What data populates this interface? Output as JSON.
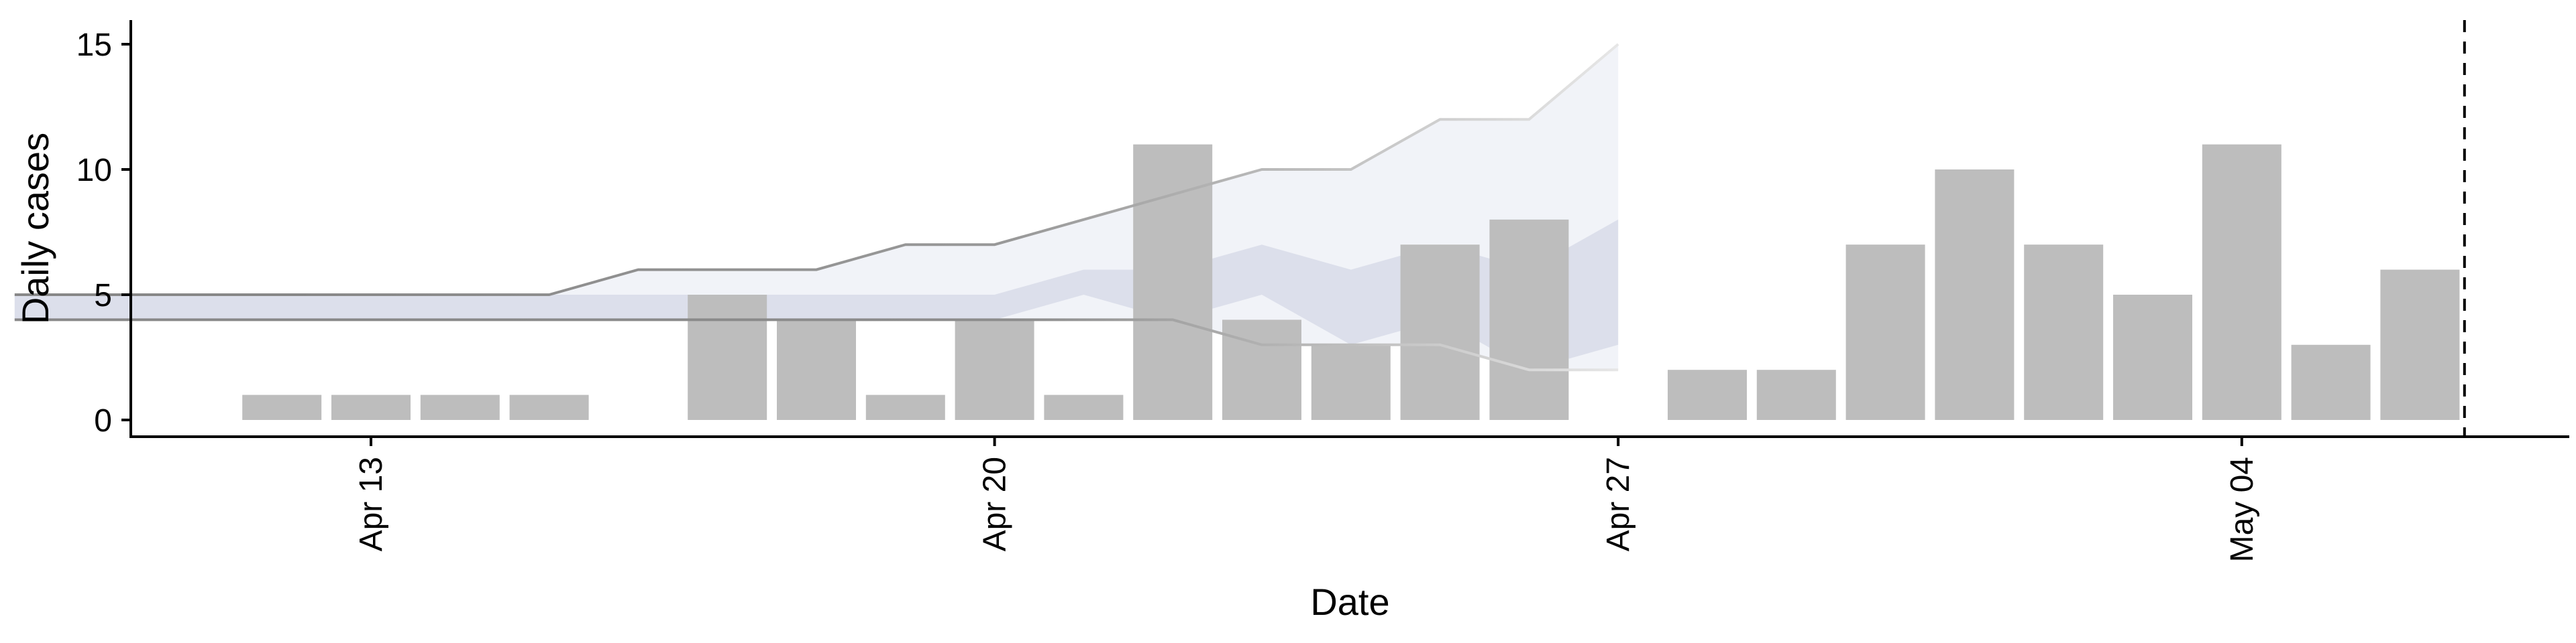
{
  "chart_data": {
    "type": "bar",
    "xlabel": "Date",
    "ylabel": "Daily cases",
    "xlim": [
      "2020-04-07",
      "2020-05-11"
    ],
    "ylim": [
      0,
      16
    ],
    "yticks": [
      0,
      5,
      10,
      15
    ],
    "xticks": [
      {
        "date": "2020-04-13",
        "label": "Apr 13"
      },
      {
        "date": "2020-04-20",
        "label": "Apr 20"
      },
      {
        "date": "2020-04-27",
        "label": "Apr 27"
      },
      {
        "date": "2020-05-04",
        "label": "May 04"
      }
    ],
    "bars": [
      {
        "date": "2020-04-12",
        "value": 1
      },
      {
        "date": "2020-04-13",
        "value": 1
      },
      {
        "date": "2020-04-14",
        "value": 1
      },
      {
        "date": "2020-04-15",
        "value": 1
      },
      {
        "date": "2020-04-17",
        "value": 5
      },
      {
        "date": "2020-04-18",
        "value": 4
      },
      {
        "date": "2020-04-19",
        "value": 1
      },
      {
        "date": "2020-04-20",
        "value": 4
      },
      {
        "date": "2020-04-21",
        "value": 1
      },
      {
        "date": "2020-04-22",
        "value": 11
      },
      {
        "date": "2020-04-23",
        "value": 4
      },
      {
        "date": "2020-04-24",
        "value": 3
      },
      {
        "date": "2020-04-25",
        "value": 7
      },
      {
        "date": "2020-04-26",
        "value": 8
      },
      {
        "date": "2020-04-28",
        "value": 2
      },
      {
        "date": "2020-04-29",
        "value": 2
      },
      {
        "date": "2020-04-30",
        "value": 7
      },
      {
        "date": "2020-05-01",
        "value": 10
      },
      {
        "date": "2020-05-02",
        "value": 7
      },
      {
        "date": "2020-05-03",
        "value": 5
      },
      {
        "date": "2020-05-04",
        "value": 11
      },
      {
        "date": "2020-05-05",
        "value": 3
      },
      {
        "date": "2020-05-06",
        "value": 6
      }
    ],
    "outer_ribbon": [
      {
        "date": "2020-04-09",
        "lower": 4,
        "upper": 5
      },
      {
        "date": "2020-04-12",
        "lower": 4,
        "upper": 5
      },
      {
        "date": "2020-04-15",
        "lower": 4,
        "upper": 5
      },
      {
        "date": "2020-04-16",
        "lower": 4,
        "upper": 6
      },
      {
        "date": "2020-04-18",
        "lower": 4,
        "upper": 6
      },
      {
        "date": "2020-04-19",
        "lower": 4,
        "upper": 7
      },
      {
        "date": "2020-04-20",
        "lower": 4,
        "upper": 7
      },
      {
        "date": "2020-04-22",
        "lower": 4,
        "upper": 9
      },
      {
        "date": "2020-04-23",
        "lower": 3,
        "upper": 10
      },
      {
        "date": "2020-04-24",
        "lower": 3,
        "upper": 10
      },
      {
        "date": "2020-04-25",
        "lower": 3,
        "upper": 12
      },
      {
        "date": "2020-04-26",
        "lower": 2,
        "upper": 12
      },
      {
        "date": "2020-04-27",
        "lower": 2,
        "upper": 15
      }
    ],
    "inner_ribbon": [
      {
        "date": "2020-04-09",
        "lower": 4,
        "upper": 5
      },
      {
        "date": "2020-04-18",
        "lower": 4,
        "upper": 5
      },
      {
        "date": "2020-04-20",
        "lower": 4,
        "upper": 5
      },
      {
        "date": "2020-04-21",
        "lower": 5,
        "upper": 6
      },
      {
        "date": "2020-04-22",
        "lower": 4,
        "upper": 6
      },
      {
        "date": "2020-04-23",
        "lower": 5,
        "upper": 7
      },
      {
        "date": "2020-04-24",
        "lower": 3,
        "upper": 6
      },
      {
        "date": "2020-04-25",
        "lower": 4,
        "upper": 7
      },
      {
        "date": "2020-04-26",
        "lower": 2,
        "upper": 6
      },
      {
        "date": "2020-04-27",
        "lower": 3,
        "upper": 8
      }
    ],
    "reference_line_date": "2020-05-06T12:00",
    "colors": {
      "bars": "#bdbdbd",
      "outer_ribbon": "#eef0f6",
      "inner_ribbon": "#c8ccde",
      "bound_line_start": "#888888",
      "bound_line_end": "#e2e2e2",
      "reference_line": "#000000"
    }
  }
}
